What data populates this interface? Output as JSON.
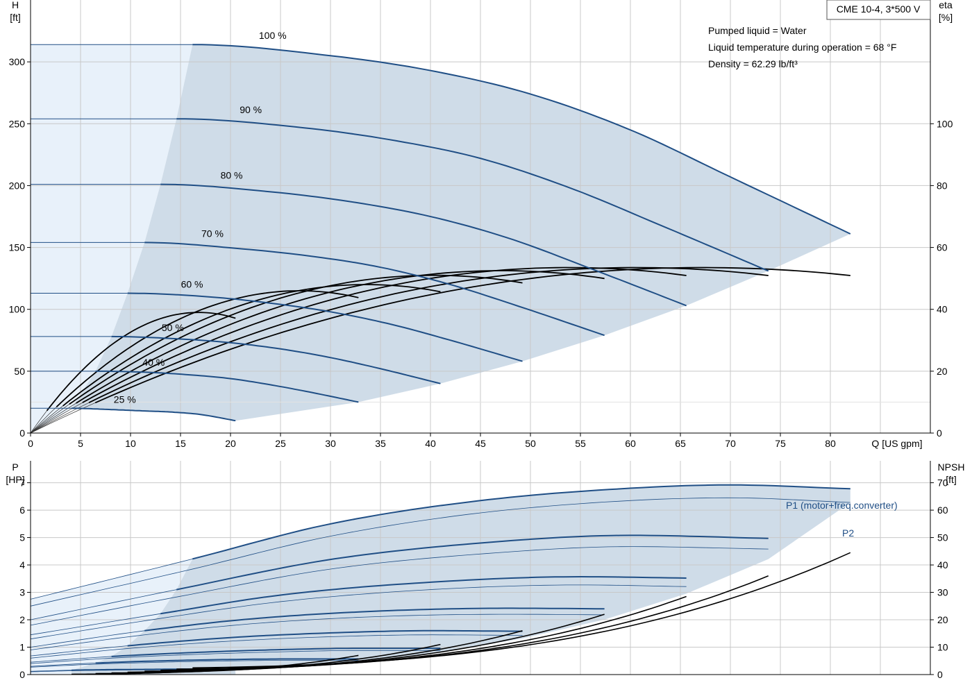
{
  "chart_data": [
    {
      "type": "line",
      "title_box": "CME 10-4, 3*500 V",
      "notes": [
        "Pumped liquid = Water",
        "Liquid temperature during operation = 68 °F",
        "Density = 62.29 lb/ft³"
      ],
      "xlabel": "Q [US gpm]",
      "ylabel_left": [
        "H",
        "[ft]"
      ],
      "ylabel_right": [
        "eta",
        "[%]"
      ],
      "xlim": [
        0,
        90
      ],
      "ylim_left": [
        0,
        350
      ],
      "ylim_right": [
        0,
        140
      ],
      "xticks": [
        0,
        5,
        10,
        15,
        20,
        25,
        30,
        35,
        40,
        45,
        50,
        55,
        60,
        65,
        70,
        75,
        80
      ],
      "yticks_left": [
        0,
        50,
        100,
        150,
        200,
        250,
        300
      ],
      "yticks_right": [
        0,
        20,
        40,
        60,
        80,
        100
      ],
      "grid": true,
      "head_curves": [
        {
          "name": "100 %",
          "qmax": 82,
          "h0": 314,
          "min_q": 16.2,
          "points": [
            [
              0,
              314
            ],
            [
              16.2,
              314
            ],
            [
              30,
              305
            ],
            [
              40,
              293
            ],
            [
              50,
              274
            ],
            [
              60,
              245
            ],
            [
              70,
              207
            ],
            [
              82,
              161
            ]
          ]
        },
        {
          "name": "90 %",
          "qmax": 73.8,
          "h0": 254,
          "min_q": 14.6,
          "points": [
            [
              0,
              254
            ],
            [
              14.6,
              254
            ],
            [
              27,
              247
            ],
            [
              36,
              237
            ],
            [
              45,
              222
            ],
            [
              54,
              198
            ],
            [
              63,
              168
            ],
            [
              73.8,
              131
            ]
          ]
        },
        {
          "name": "80 %",
          "qmax": 65.6,
          "h0": 201,
          "min_q": 13,
          "points": [
            [
              0,
              201
            ],
            [
              13,
              201
            ],
            [
              24,
              195
            ],
            [
              32,
              187
            ],
            [
              40,
              175
            ],
            [
              48,
              157
            ],
            [
              56,
              133
            ],
            [
              65.6,
              103
            ]
          ]
        },
        {
          "name": "70 %",
          "qmax": 57.4,
          "h0": 154,
          "min_q": 11.4,
          "points": [
            [
              0,
              154
            ],
            [
              11.4,
              154
            ],
            [
              21,
              149
            ],
            [
              28,
              143
            ],
            [
              35,
              134
            ],
            [
              42,
              120
            ],
            [
              49,
              102
            ],
            [
              57.4,
              79
            ]
          ]
        },
        {
          "name": "60 %",
          "qmax": 49.2,
          "h0": 113,
          "min_q": 9.7,
          "points": [
            [
              0,
              113
            ],
            [
              9.7,
              113
            ],
            [
              18,
              110
            ],
            [
              24,
              105
            ],
            [
              30,
              98
            ],
            [
              36,
              88
            ],
            [
              42,
              75
            ],
            [
              49.2,
              58
            ]
          ]
        },
        {
          "name": "50 %",
          "qmax": 41,
          "h0": 78,
          "min_q": 8.1,
          "points": [
            [
              0,
              78
            ],
            [
              8.1,
              78
            ],
            [
              15,
              76
            ],
            [
              20,
              73
            ],
            [
              25,
              68
            ],
            [
              30,
              61
            ],
            [
              35,
              52
            ],
            [
              41,
              40
            ]
          ]
        },
        {
          "name": "40 %",
          "qmax": 32.8,
          "h0": 50,
          "min_q": 6.5,
          "points": [
            [
              0,
              50
            ],
            [
              6.5,
              50
            ],
            [
              12,
              49
            ],
            [
              16,
              47
            ],
            [
              20,
              44
            ],
            [
              24,
              39
            ],
            [
              28,
              33
            ],
            [
              32.8,
              25
            ]
          ]
        },
        {
          "name": "25 %",
          "qmax": 20.5,
          "h0": 20,
          "min_q": 4.1,
          "points": [
            [
              0,
              20
            ],
            [
              4.1,
              20
            ],
            [
              8,
              19
            ],
            [
              11,
              18
            ],
            [
              14,
              17
            ],
            [
              17,
              15
            ],
            [
              20.5,
              10
            ]
          ]
        }
      ],
      "efficiency_curves": [
        {
          "qmax": 82,
          "eta_end": 49
        },
        {
          "qmax": 73.8,
          "eta_end": 49
        },
        {
          "qmax": 65.6,
          "eta_end": 49
        },
        {
          "qmax": 57.4,
          "eta_end": 48
        },
        {
          "qmax": 49.2,
          "eta_end": 46.5
        },
        {
          "qmax": 41,
          "eta_end": 43.5
        },
        {
          "qmax": 32.8,
          "eta_end": 41.5
        },
        {
          "qmax": 20.5,
          "eta_end": 34.5
        }
      ],
      "colors": {
        "head": "#1f4e85",
        "fill": "#cfdce8",
        "fill_light": "#e8f1fa",
        "eta": "#000000",
        "grid": "#c8c8c8"
      }
    },
    {
      "type": "line",
      "xlabel": "",
      "ylabel_left": [
        "P",
        "[HP]"
      ],
      "ylabel_right": [
        "NPSH",
        "[ft]"
      ],
      "xlim": [
        0,
        90
      ],
      "ylim_left": [
        0,
        7.8
      ],
      "ylim_right": [
        0,
        78
      ],
      "yticks_left": [
        0,
        1,
        2,
        3,
        4,
        5,
        6,
        7
      ],
      "yticks_right": [
        0,
        10,
        20,
        30,
        40,
        50,
        60,
        70
      ],
      "grid": true,
      "series_labels": {
        "p1": "P1 (motor+freq.converter)",
        "p2": "P2"
      },
      "power_curves": [
        {
          "qmax": 82,
          "min_q": 16.2,
          "p1": [
            [
              0,
              2.75
            ],
            [
              16.2,
              4.22
            ],
            [
              30,
              5.5
            ],
            [
              45,
              6.35
            ],
            [
              60,
              6.8
            ],
            [
              70,
              6.92
            ],
            [
              82,
              6.78
            ]
          ],
          "p2": [
            [
              0,
              2.5
            ],
            [
              16.2,
              3.85
            ],
            [
              30,
              5.05
            ],
            [
              45,
              5.9
            ],
            [
              60,
              6.35
            ],
            [
              70,
              6.45
            ],
            [
              82,
              6.28
            ]
          ]
        },
        {
          "qmax": 73.8,
          "min_q": 14.6,
          "p1": [
            [
              0,
              2.0
            ],
            [
              14.6,
              3.1
            ],
            [
              30,
              4.2
            ],
            [
              45,
              4.8
            ],
            [
              60,
              5.08
            ],
            [
              73.8,
              4.97
            ]
          ],
          "p2": [
            [
              0,
              1.8
            ],
            [
              14.6,
              2.83
            ],
            [
              30,
              3.85
            ],
            [
              45,
              4.4
            ],
            [
              60,
              4.67
            ],
            [
              73.8,
              4.58
            ]
          ]
        },
        {
          "qmax": 65.6,
          "min_q": 13,
          "p1": [
            [
              0,
              1.45
            ],
            [
              13,
              2.22
            ],
            [
              25,
              2.9
            ],
            [
              40,
              3.37
            ],
            [
              55,
              3.57
            ],
            [
              65.6,
              3.52
            ]
          ],
          "p2": [
            [
              0,
              1.3
            ],
            [
              13,
              2.05
            ],
            [
              25,
              2.66
            ],
            [
              40,
              3.1
            ],
            [
              55,
              3.27
            ],
            [
              65.6,
              3.21
            ]
          ]
        },
        {
          "qmax": 57.4,
          "min_q": 11.4,
          "p1": [
            [
              0,
              1.0
            ],
            [
              11.4,
              1.6
            ],
            [
              22,
              2.03
            ],
            [
              35,
              2.32
            ],
            [
              48,
              2.42
            ],
            [
              57.4,
              2.4
            ]
          ],
          "p2": [
            [
              0,
              0.9
            ],
            [
              11.4,
              1.45
            ],
            [
              22,
              1.85
            ],
            [
              35,
              2.12
            ],
            [
              48,
              2.2
            ],
            [
              57.4,
              2.18
            ]
          ]
        },
        {
          "qmax": 49.2,
          "min_q": 9.7,
          "p1": [
            [
              0,
              0.68
            ],
            [
              9.7,
              1.05
            ],
            [
              20,
              1.35
            ],
            [
              30,
              1.52
            ],
            [
              40,
              1.6
            ],
            [
              49.2,
              1.58
            ]
          ],
          "p2": [
            [
              0,
              0.6
            ],
            [
              9.7,
              0.95
            ],
            [
              20,
              1.22
            ],
            [
              30,
              1.38
            ],
            [
              40,
              1.45
            ],
            [
              49.2,
              1.43
            ]
          ]
        },
        {
          "qmax": 41,
          "min_q": 8.1,
          "p1": [
            [
              0,
              0.45
            ],
            [
              8.1,
              0.66
            ],
            [
              16,
              0.8
            ],
            [
              25,
              0.91
            ],
            [
              33,
              0.96
            ],
            [
              41,
              0.96
            ]
          ],
          "p2": [
            [
              0,
              0.4
            ],
            [
              8.1,
              0.6
            ],
            [
              16,
              0.73
            ],
            [
              25,
              0.83
            ],
            [
              33,
              0.88
            ],
            [
              41,
              0.88
            ]
          ]
        },
        {
          "qmax": 32.8,
          "min_q": 6.5,
          "p1": [
            [
              0,
              0.3
            ],
            [
              6.5,
              0.42
            ],
            [
              13,
              0.5
            ],
            [
              20,
              0.55
            ],
            [
              26,
              0.57
            ],
            [
              32.8,
              0.57
            ]
          ],
          "p2": [
            [
              0,
              0.27
            ],
            [
              6.5,
              0.38
            ],
            [
              13,
              0.45
            ],
            [
              20,
              0.5
            ],
            [
              26,
              0.52
            ],
            [
              32.8,
              0.52
            ]
          ]
        },
        {
          "qmax": 20.5,
          "min_q": 4.1,
          "p1": [
            [
              0,
              0.12
            ],
            [
              4.1,
              0.16
            ],
            [
              8,
              0.18
            ],
            [
              12,
              0.19
            ],
            [
              16,
              0.2
            ],
            [
              20.5,
              0.2
            ]
          ],
          "p2": [
            [
              0,
              0.1
            ],
            [
              4.1,
              0.14
            ],
            [
              8,
              0.16
            ],
            [
              12,
              0.17
            ],
            [
              16,
              0.18
            ],
            [
              20.5,
              0.18
            ]
          ]
        }
      ],
      "npsh_curves": [
        {
          "qmax": 82,
          "npsh_end": 44.5
        },
        {
          "qmax": 73.8,
          "npsh_end": 36
        },
        {
          "qmax": 65.6,
          "npsh_end": 28.5
        },
        {
          "qmax": 57.4,
          "npsh_end": 22
        },
        {
          "qmax": 49.2,
          "npsh_end": 16
        },
        {
          "qmax": 41,
          "npsh_end": 11
        },
        {
          "qmax": 32.8,
          "npsh_end": 7
        },
        {
          "qmax": 20.5,
          "npsh_end": 2.5
        }
      ],
      "colors": {
        "p1": "#1f4e85",
        "p2": "#1f4e85",
        "fill": "#cfdce8",
        "fill_light": "#e8f1fa",
        "npsh": "#000000",
        "grid": "#c8c8c8"
      }
    }
  ]
}
